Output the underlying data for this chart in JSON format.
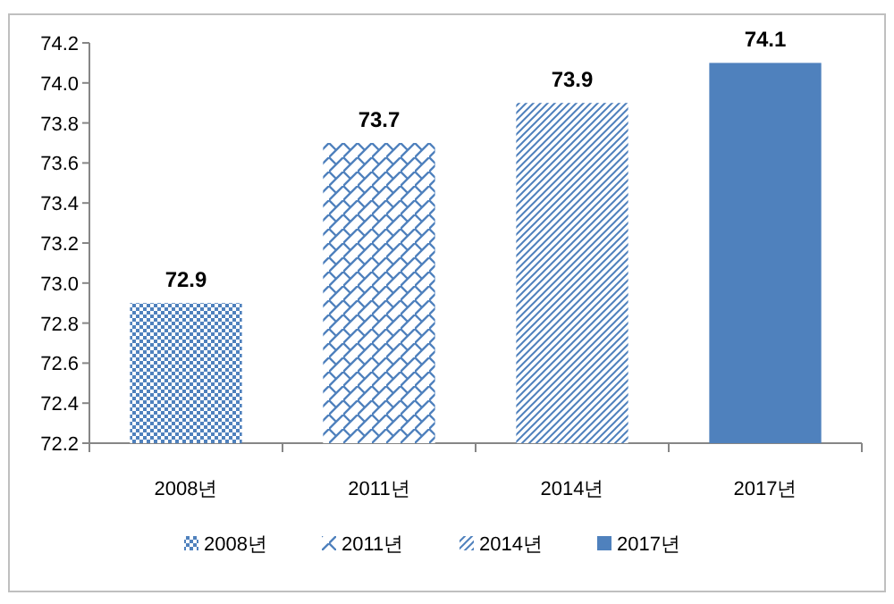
{
  "chart_data": {
    "type": "bar",
    "categories": [
      "2008년",
      "2011년",
      "2014년",
      "2017년"
    ],
    "series": [
      {
        "name": "2008년",
        "color": "#4f81bd",
        "values": [
          72.9,
          null,
          null,
          null
        ]
      },
      {
        "name": "2011년",
        "color": "#4f81bd",
        "values": [
          null,
          73.7,
          null,
          null
        ]
      },
      {
        "name": "2014년",
        "color": "#4f81bd",
        "values": [
          null,
          null,
          73.9,
          null
        ]
      },
      {
        "name": "2017년",
        "color": "#4f81bd",
        "values": [
          null,
          null,
          null,
          74.1
        ]
      }
    ],
    "ylim": [
      72.2,
      74.2
    ],
    "yticks": [
      {
        "value": 72.2,
        "label": "72.2"
      },
      {
        "value": 72.4,
        "label": "72.4"
      },
      {
        "value": 72.6,
        "label": "72.6"
      },
      {
        "value": 72.8,
        "label": "72.8"
      },
      {
        "value": 73,
        "label": "73.0"
      },
      {
        "value": 73.2,
        "label": "73.2"
      },
      {
        "value": 73.4,
        "label": "73.4"
      },
      {
        "value": 73.6,
        "label": "73.6"
      },
      {
        "value": 73.8,
        "label": "73.8"
      },
      {
        "value": 74,
        "label": "74.0"
      },
      {
        "value": 74.2,
        "label": "74.2"
      }
    ],
    "data_labels": true,
    "grid": false,
    "legend": "bottom"
  }
}
